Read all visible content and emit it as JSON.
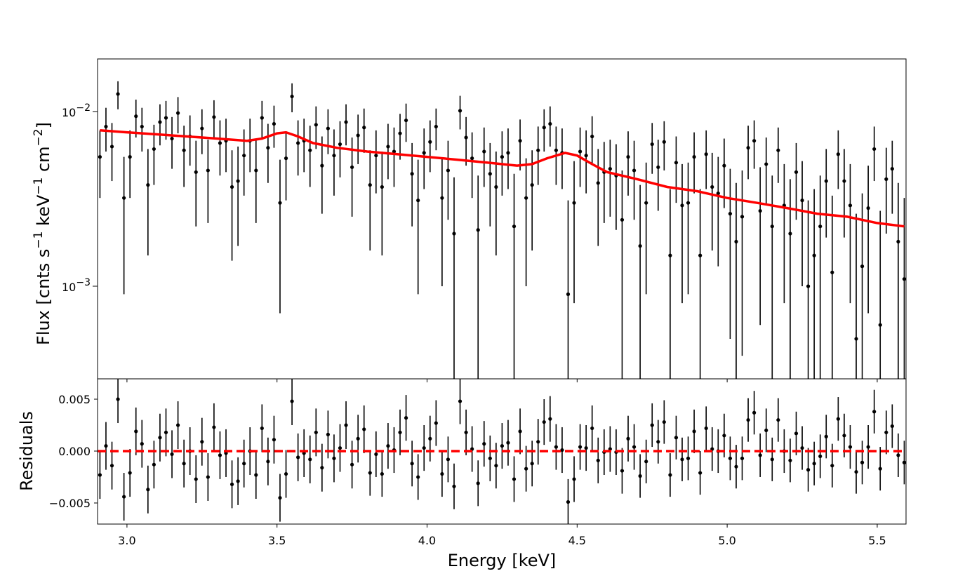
{
  "chart_data": [
    {
      "type": "errorbar",
      "yscale": "log",
      "ylabel": [
        "Flux [cnts s",
        "−1",
        " keV",
        "−1",
        " cm",
        "−2",
        "]"
      ],
      "ylim": [
        0.000295,
        0.02
      ],
      "yticks": [
        {
          "value": 0.01,
          "label": "10",
          "exponent": "−2"
        },
        {
          "value": 0.001,
          "label": "10",
          "exponent": "−3"
        }
      ],
      "color": "#000000",
      "x": [
        2.91,
        2.93,
        2.95,
        2.97,
        2.99,
        3.01,
        3.03,
        3.05,
        3.07,
        3.09,
        3.11,
        3.13,
        3.15,
        3.17,
        3.19,
        3.21,
        3.23,
        3.25,
        3.27,
        3.29,
        3.31,
        3.33,
        3.35,
        3.37,
        3.39,
        3.41,
        3.43,
        3.45,
        3.47,
        3.49,
        3.51,
        3.53,
        3.55,
        3.57,
        3.59,
        3.61,
        3.63,
        3.65,
        3.67,
        3.69,
        3.71,
        3.73,
        3.75,
        3.77,
        3.79,
        3.81,
        3.83,
        3.85,
        3.87,
        3.89,
        3.91,
        3.93,
        3.95,
        3.97,
        3.99,
        4.01,
        4.03,
        4.05,
        4.07,
        4.09,
        4.11,
        4.13,
        4.15,
        4.17,
        4.19,
        4.21,
        4.23,
        4.25,
        4.27,
        4.29,
        4.31,
        4.33,
        4.35,
        4.37,
        4.39,
        4.41,
        4.43,
        4.45,
        4.47,
        4.49,
        4.51,
        4.53,
        4.55,
        4.57,
        4.59,
        4.61,
        4.63,
        4.65,
        4.67,
        4.69,
        4.71,
        4.73,
        4.75,
        4.77,
        4.79,
        4.81,
        4.83,
        4.85,
        4.87,
        4.89,
        4.91,
        4.93,
        4.95,
        4.97,
        4.99,
        5.01,
        5.03,
        5.05,
        5.07,
        5.09,
        5.11,
        5.13,
        5.15,
        5.17,
        5.19,
        5.21,
        5.23,
        5.25,
        5.27,
        5.29,
        5.31,
        5.33,
        5.35,
        5.37,
        5.39,
        5.41,
        5.43,
        5.45,
        5.47,
        5.49,
        5.51,
        5.53,
        5.55,
        5.57,
        5.59
      ],
      "values": [
        0.0055,
        0.0082,
        0.0063,
        0.0126,
        0.0032,
        0.0055,
        0.0094,
        0.0082,
        0.0038,
        0.0061,
        0.0087,
        0.0092,
        0.007,
        0.0098,
        0.006,
        0.0072,
        0.0045,
        0.008,
        0.0046,
        0.0093,
        0.0066,
        0.0068,
        0.0037,
        0.004,
        0.0056,
        0.0068,
        0.0046,
        0.0092,
        0.0062,
        0.0085,
        0.003,
        0.0054,
        0.0122,
        0.0066,
        0.0068,
        0.006,
        0.0084,
        0.0049,
        0.008,
        0.0056,
        0.0065,
        0.0087,
        0.0048,
        0.0073,
        0.0081,
        0.0038,
        0.0056,
        0.0037,
        0.0063,
        0.0059,
        0.0075,
        0.0089,
        0.0044,
        0.0031,
        0.0058,
        0.0067,
        0.0082,
        0.0032,
        0.0046,
        0.002,
        0.0101,
        0.0071,
        0.0054,
        0.0021,
        0.0059,
        0.0044,
        0.0037,
        0.0055,
        0.0058,
        0.0022,
        0.0068,
        0.0032,
        0.0038,
        0.006,
        0.0081,
        0.0085,
        0.006,
        0.0058,
        0.0009,
        0.003,
        0.0059,
        0.0056,
        0.0072,
        0.0039,
        0.0045,
        0.0047,
        0.0043,
        0.0024,
        0.0055,
        0.0046,
        0.0017,
        0.003,
        0.0065,
        0.0048,
        0.0067,
        0.0015,
        0.0051,
        0.0029,
        0.003,
        0.0055,
        0.0015,
        0.0057,
        0.0037,
        0.0034,
        0.0049,
        0.0026,
        0.0018,
        0.0025,
        0.0062,
        0.0068,
        0.0027,
        0.005,
        0.0022,
        0.006,
        0.0029,
        0.002,
        0.0045,
        0.0031,
        0.001,
        0.0015,
        0.0022,
        0.004,
        0.0012,
        0.0057,
        0.004,
        0.0029,
        0.0005,
        0.0013,
        0.0028,
        0.0061,
        0.0006,
        0.0041,
        0.0047,
        0.0018,
        0.0011
      ],
      "errors": [
        0.0023,
        0.0023,
        0.0023,
        0.0023,
        0.0023,
        0.0023,
        0.0023,
        0.0023,
        0.0023,
        0.0023,
        0.0023,
        0.0023,
        0.0023,
        0.0023,
        0.0023,
        0.0023,
        0.0023,
        0.0023,
        0.0023,
        0.0023,
        0.0023,
        0.0023,
        0.0023,
        0.0023,
        0.0023,
        0.0023,
        0.0023,
        0.0023,
        0.0023,
        0.0023,
        0.0023,
        0.0023,
        0.0023,
        0.0023,
        0.0023,
        0.0023,
        0.0023,
        0.0023,
        0.0023,
        0.0023,
        0.0023,
        0.0023,
        0.0023,
        0.0023,
        0.0023,
        0.0022,
        0.0022,
        0.0022,
        0.0022,
        0.0022,
        0.0022,
        0.0022,
        0.0022,
        0.0022,
        0.0022,
        0.0022,
        0.0022,
        0.0022,
        0.0022,
        0.0022,
        0.0022,
        0.0022,
        0.0022,
        0.0022,
        0.0022,
        0.0022,
        0.0022,
        0.0022,
        0.0022,
        0.0022,
        0.0022,
        0.0022,
        0.0022,
        0.0022,
        0.0022,
        0.0022,
        0.0022,
        0.0022,
        0.0022,
        0.0022,
        0.0022,
        0.0022,
        0.0022,
        0.0022,
        0.0022,
        0.0022,
        0.0022,
        0.0022,
        0.0022,
        0.0022,
        0.0021,
        0.0021,
        0.0021,
        0.0021,
        0.0021,
        0.0021,
        0.0021,
        0.0021,
        0.0021,
        0.0021,
        0.0021,
        0.0021,
        0.0021,
        0.0021,
        0.0021,
        0.0021,
        0.0021,
        0.0021,
        0.0021,
        0.0021,
        0.0021,
        0.0021,
        0.0021,
        0.0021,
        0.0021,
        0.0021,
        0.0021,
        0.0021,
        0.0021,
        0.0021,
        0.0021,
        0.0021,
        0.0021,
        0.0021,
        0.0021,
        0.0021,
        0.0021,
        0.0021,
        0.0021,
        0.0021,
        0.0021,
        0.0021,
        0.0021,
        0.0021,
        0.0021
      ],
      "model": {
        "color": "#ff0000",
        "x": [
          2.91,
          3.0,
          3.1,
          3.2,
          3.3,
          3.4,
          3.45,
          3.5,
          3.53,
          3.57,
          3.62,
          3.7,
          3.8,
          3.9,
          4.0,
          4.1,
          4.2,
          4.3,
          4.35,
          4.4,
          4.46,
          4.5,
          4.55,
          4.6,
          4.7,
          4.8,
          4.9,
          5.0,
          5.1,
          5.2,
          5.3,
          5.4,
          5.5,
          5.59
        ],
        "values": [
          0.0078,
          0.0076,
          0.0074,
          0.0072,
          0.007,
          0.0068,
          0.007,
          0.0075,
          0.0076,
          0.0072,
          0.0066,
          0.0062,
          0.0059,
          0.0057,
          0.0055,
          0.0053,
          0.0051,
          0.0049,
          0.005,
          0.0054,
          0.0058,
          0.0056,
          0.005,
          0.0045,
          0.0041,
          0.0037,
          0.0035,
          0.0032,
          0.003,
          0.0028,
          0.0026,
          0.0025,
          0.0023,
          0.0022
        ]
      }
    },
    {
      "type": "errorbar",
      "ylabel": "Residuals",
      "xlabel": "Energy [keV]",
      "xlim": [
        2.902,
        5.596
      ],
      "xticks": [
        {
          "value": 3,
          "label": "3.0"
        },
        3.5,
        {
          "value": 4,
          "label": "4.0"
        },
        4.5,
        {
          "value": 5,
          "label": "5.0"
        },
        5.5
      ],
      "ylim": [
        -0.00703,
        0.00696
      ],
      "yticks": [
        0.005,
        {
          "value": 0,
          "label": "0.000"
        },
        {
          "value": -0.005,
          "label": "−0.005"
        }
      ],
      "zero_line": 0,
      "zero_color": "#ff0000",
      "color": "#000000",
      "values": [
        -0.0023,
        0.0005,
        -0.0014,
        0.005,
        -0.0044,
        -0.0021,
        0.0019,
        0.0007,
        -0.0037,
        -0.0013,
        0.0013,
        0.0018,
        -0.0003,
        0.0025,
        -0.0012,
        0.0,
        -0.0027,
        0.0009,
        -0.0025,
        0.0023,
        -0.0004,
        -0.0002,
        -0.0032,
        -0.0029,
        -0.0012,
        0.0,
        -0.0023,
        0.0022,
        -0.001,
        0.0011,
        -0.0045,
        -0.0022,
        0.0048,
        -0.0006,
        -0.0002,
        -0.0008,
        0.0018,
        -0.0016,
        0.0016,
        -0.0007,
        0.0003,
        0.0025,
        -0.0013,
        0.0012,
        0.0021,
        -0.0021,
        -0.0003,
        -0.0022,
        0.0005,
        0.0001,
        0.0018,
        0.0032,
        -0.0012,
        -0.0025,
        0.0003,
        0.0012,
        0.0027,
        -0.0022,
        -0.0008,
        -0.0034,
        0.0048,
        0.0018,
        0.0002,
        -0.0031,
        0.0007,
        -0.0007,
        -0.0014,
        0.0005,
        0.0008,
        -0.0027,
        0.0019,
        -0.0017,
        -0.0012,
        0.0009,
        0.0028,
        0.0031,
        0.0004,
        0.0001,
        -0.0049,
        -0.0027,
        0.0004,
        0.0003,
        0.0022,
        -0.0009,
        -0.0001,
        0.0002,
        -0.0001,
        -0.0019,
        0.0012,
        0.0004,
        -0.0024,
        -0.001,
        0.0025,
        0.0009,
        0.0028,
        -0.0023,
        0.0013,
        -0.0008,
        -0.0007,
        0.0019,
        -0.0021,
        0.0022,
        0.0002,
        0.0,
        0.0015,
        -0.0007,
        -0.0015,
        -0.0007,
        0.003,
        0.0037,
        -0.0004,
        0.002,
        -0.0008,
        0.003,
        0.0,
        -0.0009,
        0.0017,
        0.0003,
        -0.0018,
        -0.0012,
        -0.0005,
        0.0014,
        -0.0014,
        0.0031,
        0.0015,
        0.0004,
        -0.002,
        -0.0011,
        0.0004,
        0.0038,
        -0.0017,
        0.0018,
        0.0024,
        -0.0004,
        -0.0011
      ]
    }
  ]
}
